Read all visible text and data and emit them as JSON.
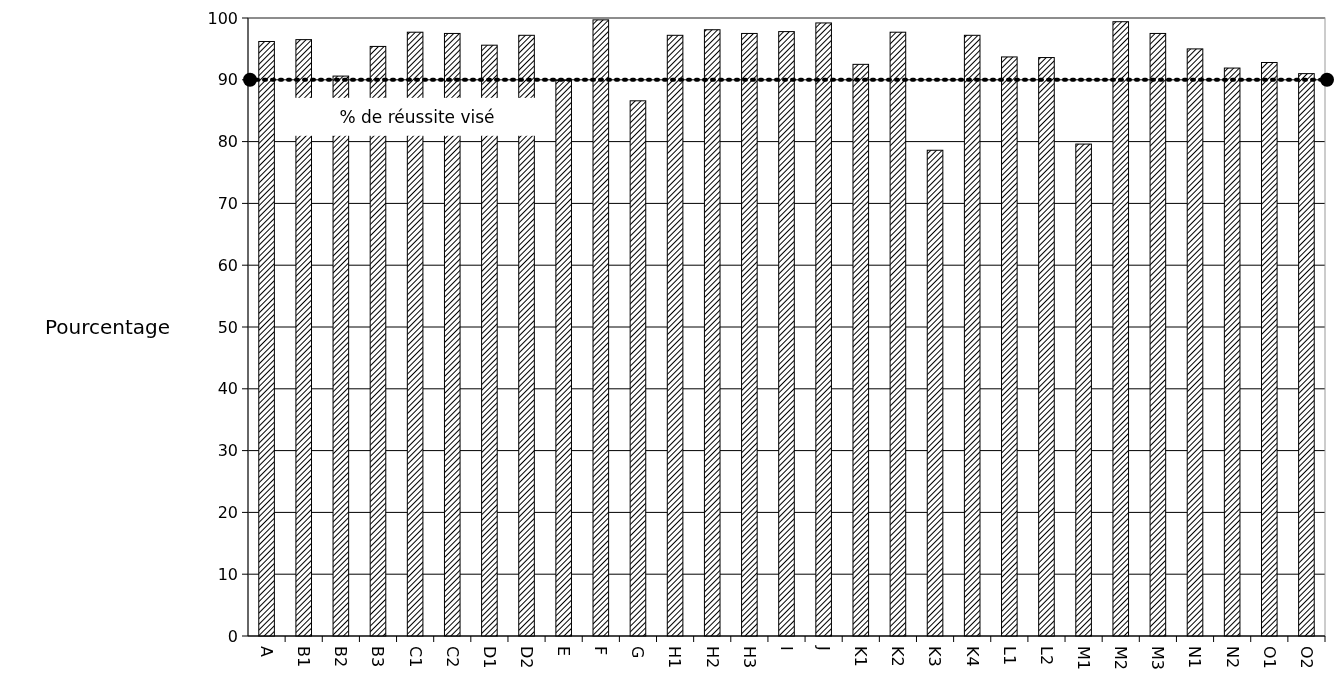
{
  "chart_data": {
    "type": "bar",
    "ylabel": "Pourcentage",
    "categories": [
      "A",
      "B1",
      "B2",
      "B3",
      "C1",
      "C2",
      "D1",
      "D2",
      "E",
      "F",
      "G",
      "H1",
      "H2",
      "H3",
      "I",
      "J",
      "K1",
      "K2",
      "K3",
      "K4",
      "L1",
      "L2",
      "M1",
      "M2",
      "M3",
      "N1",
      "N2",
      "O1",
      "O2"
    ],
    "values": [
      96.2,
      96.5,
      90.6,
      95.4,
      97.7,
      97.5,
      95.6,
      97.2,
      89.9,
      99.7,
      86.6,
      97.2,
      98.1,
      97.5,
      97.8,
      99.2,
      92.5,
      97.7,
      78.6,
      97.2,
      93.7,
      93.6,
      79.6,
      99.4,
      97.5,
      95.0,
      91.9,
      92.8,
      91.0
    ],
    "color": "#000000",
    "ylim": [
      0,
      100
    ],
    "yticks": [
      0,
      10,
      20,
      30,
      40,
      50,
      60,
      70,
      80,
      90,
      100
    ],
    "grid": "y",
    "ref_lines": [
      {
        "axis": "y",
        "value": 90,
        "label": "% de réussite visé",
        "color": "#000000",
        "line_style": "dotted"
      }
    ]
  }
}
